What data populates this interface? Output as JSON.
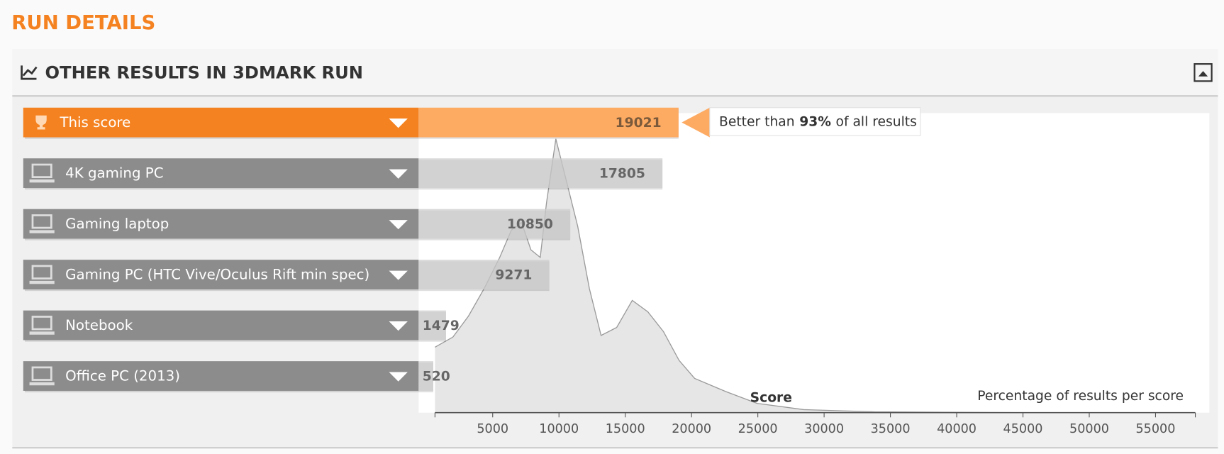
{
  "header": {
    "title": "RUN DETAILS"
  },
  "panel": {
    "title": "OTHER RESULTS IN 3DMARK RUN"
  },
  "chart_data": {
    "type": "bar",
    "categories": [
      "This score",
      "4K gaming PC",
      "Gaming laptop",
      "Gaming PC (HTC Vive/Oculus Rift min spec)",
      "Notebook",
      "Office PC (2013)"
    ],
    "values": [
      19021,
      17805,
      10850,
      9271,
      1479,
      520
    ],
    "color": "#8c8c8c",
    "highlight_color": "#f58220",
    "highlight": 0,
    "callout": {
      "prefix": "Better than",
      "value_label": "93%",
      "suffix": "of all results"
    },
    "xlabel": "Score",
    "ylabel": "Percentage of results per score",
    "xlim": [
      0,
      58000
    ],
    "xticks": [
      5000,
      10000,
      15000,
      20000,
      25000,
      30000,
      35000,
      40000,
      45000,
      50000,
      55000
    ],
    "distribution": {
      "x": [
        647,
        2000,
        3176,
        4353,
        5529,
        6412,
        7176,
        7882,
        8588,
        9059,
        9765,
        10529,
        11412,
        12294,
        13176,
        14353,
        15529,
        16706,
        17882,
        19059,
        20235,
        22588,
        24941,
        28471,
        33765,
        44353
      ],
      "values": [
        23.9,
        27.6,
        35.3,
        45.3,
        56.7,
        66.7,
        69.5,
        59.5,
        56.7,
        76.6,
        100,
        85.2,
        68.1,
        45.3,
        28.2,
        31.1,
        41.0,
        36.8,
        29.6,
        19.1,
        12.5,
        7.7,
        3.4,
        1.1,
        0.3,
        0
      ],
      "ylim": [
        0,
        100
      ]
    }
  }
}
